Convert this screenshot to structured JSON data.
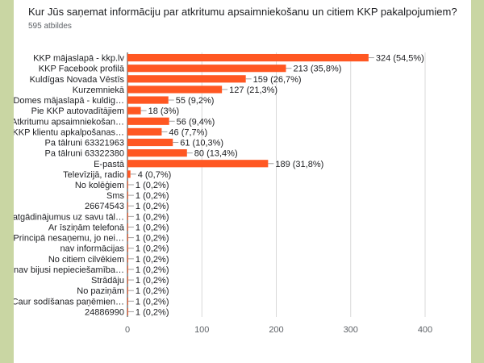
{
  "chart_data": {
    "type": "bar",
    "orientation": "horizontal",
    "title": "Kur Jūs saņemat informāciju par atkritumu apsaimniekošanu un citiem KKP pakalpojumiem?",
    "subtitle": "595 atbildes",
    "xlim": [
      0,
      400
    ],
    "x_ticks": [
      "0",
      "100",
      "200",
      "300",
      "400"
    ],
    "grid": true,
    "bar_color": "#ff5722",
    "categories": [
      "KKP mājaslapā - kkp.lv",
      "KKP Facebook profilā",
      "Kuldīgas Novada Vēstīs",
      "Kurzemniekā",
      "Domes mājaslapā - kuldig…",
      "Pie KKP autovadītājiem",
      "Atkritumu apsaimniekošan…",
      "KKP klientu apkalpošanas…",
      "Pa tālruni 63321963",
      "Pa tālruni 63322380",
      "E-pastā",
      "Televīzijā, radio",
      "No kolēģiem",
      "Sms",
      "26674543",
      "atgādinājumus uz savu tāl…",
      "Ar īsziņām telefonā",
      "Principā nesaņemu, jo nei…",
      "nav informācijas",
      "No citiem cilvēkiem",
      "nav bijusi nepieciešamība…",
      "Strādāju",
      "No paziņām",
      "Caur sodīšanas paņēmien…",
      "24886990"
    ],
    "values": [
      324,
      213,
      159,
      127,
      55,
      18,
      56,
      46,
      61,
      80,
      189,
      4,
      1,
      1,
      1,
      1,
      1,
      1,
      1,
      1,
      1,
      1,
      1,
      1,
      1
    ],
    "labels": [
      "324 (54,5%)",
      "213 (35,8%)",
      "159 (26,7%)",
      "127 (21,3%)",
      "55 (9,2%)",
      "18 (3%)",
      "56 (9,4%)",
      "46 (7,7%)",
      "61 (10,3%)",
      "80 (13,4%)",
      "189 (31,8%)",
      "4 (0,7%)",
      "1 (0,2%)",
      "1 (0,2%)",
      "1 (0,2%)",
      "1 (0,2%)",
      "1 (0,2%)",
      "1 (0,2%)",
      "1 (0,2%)",
      "1 (0,2%)",
      "1 (0,2%)",
      "1 (0,2%)",
      "1 (0,2%)",
      "1 (0,2%)",
      "1 (0,2%)"
    ]
  }
}
